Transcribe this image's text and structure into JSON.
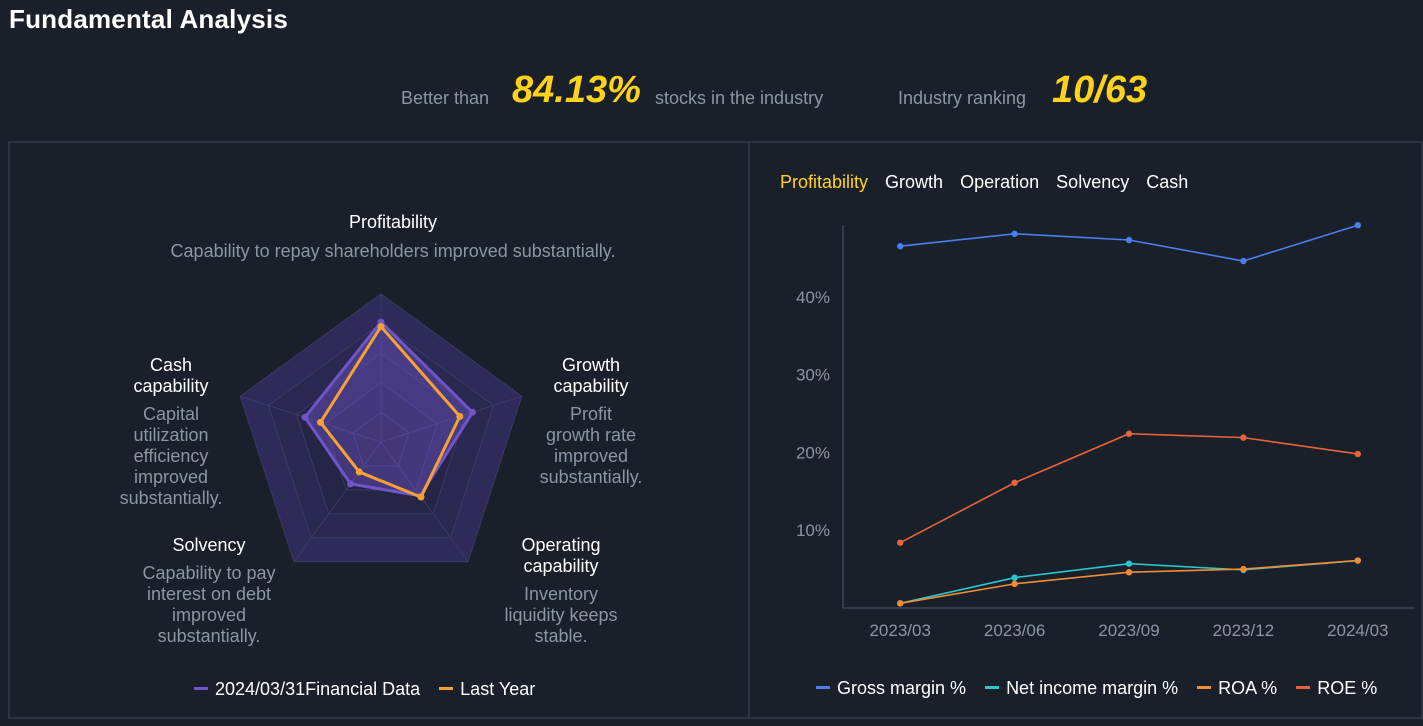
{
  "title": "Fundamental Analysis",
  "summary": {
    "better_than_prefix": "Better than",
    "better_than_value": "84.13%",
    "better_than_suffix": "stocks in the industry",
    "ranking_label": "Industry ranking",
    "ranking_value": "10/63"
  },
  "colors": {
    "accent_yellow": "#ffd31a",
    "current_series": "#6f55c9",
    "last_year_series": "#f7a134",
    "gross_margin": "#4a7ff0",
    "net_income_margin": "#2cc6cf",
    "roa": "#f28c35",
    "roe": "#e8633a"
  },
  "radar": {
    "dimensions": [
      {
        "title": [
          "Profitability"
        ],
        "desc": [
          "Capability to repay shareholders improved substantially."
        ]
      },
      {
        "title": [
          "Growth",
          "capability"
        ],
        "desc": [
          "Profit",
          "growth rate",
          "improved",
          "substantially."
        ]
      },
      {
        "title": [
          "Operating",
          "capability"
        ],
        "desc": [
          "Inventory",
          "liquidity keeps",
          "stable."
        ]
      },
      {
        "title": [
          "Solvency"
        ],
        "desc": [
          "Capability to pay",
          "interest on debt",
          "improved",
          "substantially."
        ]
      },
      {
        "title": [
          "Cash",
          "capability"
        ],
        "desc": [
          "Capital",
          "utilization",
          "efficiency",
          "improved",
          "substantially."
        ]
      }
    ],
    "legend": [
      "2024/03/31Financial Data",
      "Last Year"
    ]
  },
  "chart_data": [
    {
      "type": "radar",
      "indicators": [
        "Profitability",
        "Growth capability",
        "Operating capability",
        "Solvency",
        "Cash capability"
      ],
      "max": 100,
      "series": [
        {
          "name": "2024/03/31Financial Data",
          "values": [
            81,
            65,
            45,
            35,
            54
          ]
        },
        {
          "name": "Last Year",
          "values": [
            78,
            56,
            46,
            25,
            43
          ]
        }
      ]
    },
    {
      "type": "line",
      "tabs": [
        "Profitability",
        "Growth",
        "Operation",
        "Solvency",
        "Cash"
      ],
      "active_tab": "Profitability",
      "categories": [
        "2023/03",
        "2023/06",
        "2023/09",
        "2023/12",
        "2024/03"
      ],
      "yticks": [
        "10%",
        "20%",
        "30%",
        "40%"
      ],
      "ylim": [
        0,
        50
      ],
      "series": [
        {
          "name": "Gross margin %",
          "values": [
            46.5,
            48.1,
            47.3,
            44.6,
            49.2
          ]
        },
        {
          "name": "Net income margin %",
          "values": [
            0.6,
            3.9,
            5.7,
            4.9,
            6.1
          ]
        },
        {
          "name": "ROA %",
          "values": [
            0.6,
            3.1,
            4.6,
            5.0,
            6.1
          ]
        },
        {
          "name": "ROE %",
          "values": [
            8.4,
            16.1,
            22.4,
            21.9,
            19.8
          ]
        }
      ]
    }
  ]
}
